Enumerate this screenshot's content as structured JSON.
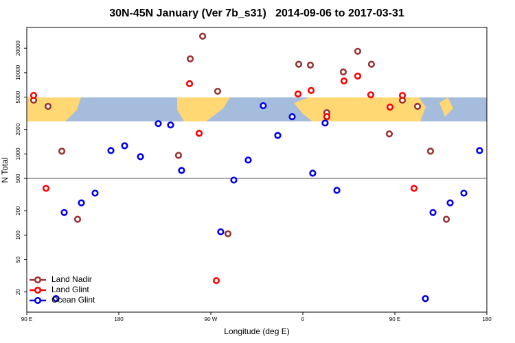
{
  "chart_data": {
    "type": "scatter",
    "title": "30N-45N January (Ver 7b_s31)   2014-09-06 to 2017-03-31",
    "x_label": "Longitude (deg E)",
    "y_label": "N Total",
    "xlim": [
      90,
      540
    ],
    "xticks": [
      {
        "value": 90,
        "label": "90 E"
      },
      180,
      {
        "value": 270,
        "label": "90 W"
      },
      {
        "value": 360,
        "label": "0"
      },
      {
        "value": 450,
        "label": "90 E"
      },
      {
        "value": 540,
        "label": "180"
      }
    ],
    "ylim": [
      11.3,
      36000
    ],
    "log_y": true,
    "yticks": [
      20,
      50,
      100,
      200,
      500,
      1000,
      2000,
      5000,
      10000,
      20000
    ],
    "hline": 500,
    "legend": "lower left",
    "series": [
      {
        "name": "Land Nadir",
        "color": "#993333",
        "x": [
          96.7,
          110.8,
          124.3,
          139.7,
          238.4,
          249.9,
          262,
          276.7,
          286.8,
          356,
          367.4,
          383.5,
          399.6,
          413.7,
          427.1,
          444.6,
          457.4,
          472.2,
          484.9,
          500.4
        ],
        "values": [
          4580,
          3850,
          1080,
          157,
          960,
          14800,
          28100,
          5900,
          104,
          12700,
          12400,
          3220,
          10200,
          18300,
          12700,
          1760,
          4580,
          3850,
          1080,
          157
        ]
      },
      {
        "name": "Land Glint",
        "color": "#ff0000",
        "x": [
          96.7,
          108.8,
          249.2,
          258.6,
          275.4,
          355.3,
          368.1,
          383.5,
          400.3,
          413.7,
          426.5,
          445.3,
          457.4,
          468.8
        ],
        "values": [
          5250,
          377,
          7310,
          1790,
          27.6,
          5460,
          6030,
          2870,
          7910,
          9080,
          5340,
          3770,
          5250,
          377
        ]
      },
      {
        "name": "Ocean Glint",
        "color": "#0000ee",
        "x": [
          118.6,
          126.6,
          143.4,
          156.8,
          172.3,
          185.7,
          201.2,
          218.6,
          230.7,
          241.4,
          279.7,
          292.5,
          306.6,
          321.3,
          335.5,
          349.6,
          369.7,
          381.8,
          393.3,
          479.9,
          487.3,
          504.1,
          517.5,
          532.9
        ],
        "values": [
          16.6,
          190,
          250,
          329,
          1100,
          1260,
          925,
          2360,
          2270,
          626,
          110,
          476,
          840,
          3920,
          1690,
          2870,
          579,
          2400,
          356,
          16.6,
          190,
          250,
          329,
          1100
        ]
      }
    ]
  }
}
